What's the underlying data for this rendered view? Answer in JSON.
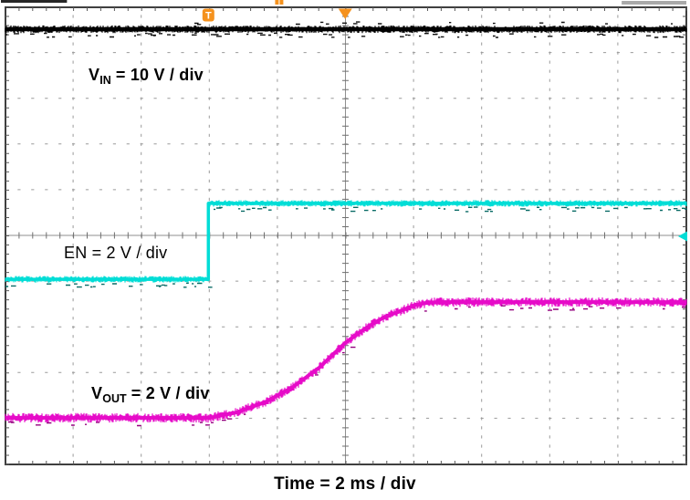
{
  "scope": {
    "labels": {
      "vin": {
        "base": "V",
        "sub": "IN",
        "rest": " = 10 V / div"
      },
      "en": {
        "text": "EN = 2 V / div"
      },
      "vout": {
        "base": "V",
        "sub": "OUT",
        "rest": " = 2 V / div"
      },
      "time": {
        "text": "Time = 2 ms / div"
      }
    },
    "colors": {
      "frame": "#3f3f3f",
      "tick": "#5a5a5a",
      "grid_dot": "#9a9a9a",
      "axis": "#8f8f8f",
      "axis_tick": "#6f6f6f",
      "vin": "#000000",
      "vin_speckle": "#111111",
      "en": "#00ddd6",
      "en_speckle": "#0a6b66",
      "vout": "#e60bc8",
      "vout_speckle": "#93007e",
      "trigger_orange": "#f5921e",
      "marker_t_text": "#ffffff",
      "record_bar_dark": "#262626",
      "record_bar_gray": "#a9a9a9"
    }
  },
  "chart_data": {
    "type": "line",
    "instrument": "oscilloscope-capture",
    "title": "",
    "xlabel": "Time = 2 ms / div",
    "x_divisions": 10,
    "y_divisions": 10,
    "time_per_div": "2 ms",
    "grid": "dotted-graticule with center crosshair axes",
    "series": [
      {
        "name": "VIN",
        "label": "VIN = 10 V / div",
        "volts_per_div": 10,
        "color_key": "vin",
        "description": "flat input supply rail, constant for entire capture",
        "points_div": [
          [
            0,
            0.48
          ],
          [
            10,
            0.48
          ]
        ]
      },
      {
        "name": "EN",
        "label": "EN = 2 V / div",
        "volts_per_div": 2,
        "color_key": "en",
        "description": "enable signal steps low-to-high at 2.98 div (trigger point)",
        "step_at_div": 2.98,
        "low_level_div": 5.95,
        "high_level_div": 4.29,
        "amplitude_volts": 3.3,
        "points_div": [
          [
            0,
            5.95
          ],
          [
            2.98,
            5.95
          ],
          [
            2.98,
            4.29
          ],
          [
            10,
            4.29
          ]
        ]
      },
      {
        "name": "VOUT",
        "label": "VOUT = 2 V / div",
        "volts_per_div": 2,
        "color_key": "vout",
        "description": "output soft-start S-ramp from 0 V to ~5 V over ~7 ms after EN rises",
        "final_amplitude_volts": 5.1,
        "points_div": [
          [
            0,
            8.98
          ],
          [
            3.0,
            8.98
          ],
          [
            3.4,
            8.86
          ],
          [
            3.81,
            8.64
          ],
          [
            4.21,
            8.32
          ],
          [
            4.61,
            7.88
          ],
          [
            4.99,
            7.34
          ],
          [
            5.28,
            7.03
          ],
          [
            5.55,
            6.79
          ],
          [
            5.82,
            6.63
          ],
          [
            6.02,
            6.51
          ],
          [
            6.22,
            6.46
          ],
          [
            6.35,
            6.45
          ],
          [
            10,
            6.45
          ]
        ]
      }
    ],
    "markers": {
      "trigger_point": {
        "symbol": "T",
        "x_div": 2.98
      },
      "trigger_position": {
        "symbol": "triangle-down",
        "x_div": 4.99
      },
      "en_level_arrow": {
        "symbol": "arrow-left",
        "y_div": 5.01
      },
      "record_bar": {
        "left_dark_seg_div": [
          0,
          0.97
        ],
        "right_gray_seg_div": [
          9.05,
          10.0
        ],
        "orange_seg_div": [
          3.96,
          4.08
        ]
      }
    }
  }
}
